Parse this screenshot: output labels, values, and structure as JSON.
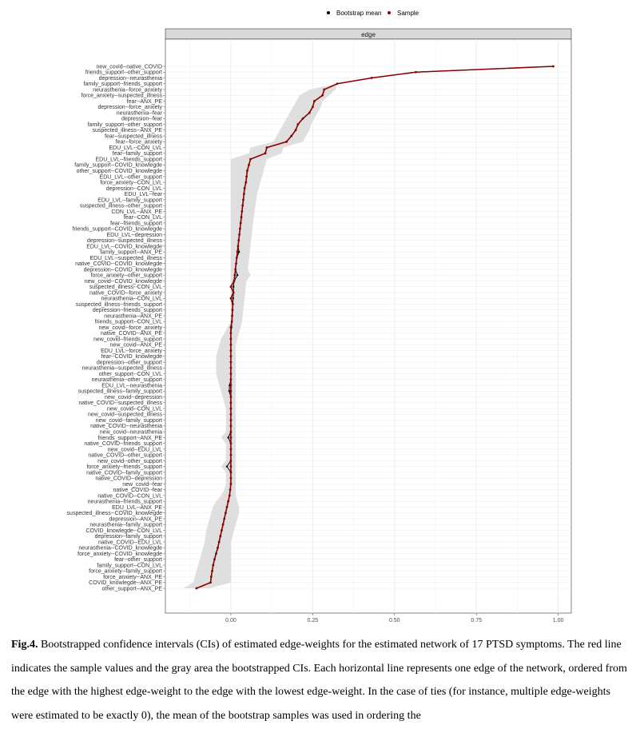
{
  "chart_data": {
    "type": "line",
    "panel_title": "edge",
    "legend": {
      "position": "top",
      "items": [
        {
          "label": "Bootstrap mean",
          "color": "#000000"
        },
        {
          "label": "Sample",
          "color": "#8b0000"
        }
      ]
    },
    "xlim": [
      -0.2,
      1.04
    ],
    "x_ticks": [
      "0.00",
      "0.25",
      "0.50",
      "0.75",
      "1.00"
    ],
    "x_tick_values": [
      0,
      0.25,
      0.5,
      0.75,
      1.0
    ],
    "grid": true,
    "colors": {
      "sample": "#8b0000",
      "mean": "#000000",
      "ci": "#d9d9d9"
    },
    "edges": [
      {
        "label": "new_covid--native_COVID",
        "sample": 0.985,
        "mean": 0.985,
        "lo": 0.985,
        "hi": 0.985
      },
      {
        "label": "friends_support--other_support",
        "sample": 0.565,
        "mean": 0.565,
        "lo": 0.565,
        "hi": 0.565
      },
      {
        "label": "depression--neurasthenia",
        "sample": 0.43,
        "mean": 0.43,
        "lo": 0.43,
        "hi": 0.43
      },
      {
        "label": "family_support--friends_support",
        "sample": 0.325,
        "mean": 0.325,
        "lo": 0.325,
        "hi": 0.325
      },
      {
        "label": "neurasthenia--force_anxiety",
        "sample": 0.285,
        "mean": 0.285,
        "lo": 0.24,
        "hi": 0.32
      },
      {
        "label": "force_anxiety--suspected_illness",
        "sample": 0.28,
        "mean": 0.28,
        "lo": 0.21,
        "hi": 0.3
      },
      {
        "label": "fear--ANX_PE",
        "sample": 0.255,
        "mean": 0.255,
        "lo": 0.2,
        "hi": 0.28
      },
      {
        "label": "depression--force_anxiety",
        "sample": 0.25,
        "mean": 0.25,
        "lo": 0.19,
        "hi": 0.275
      },
      {
        "label": "neurasthenia--fear",
        "sample": 0.24,
        "mean": 0.24,
        "lo": 0.18,
        "hi": 0.265
      },
      {
        "label": "depression--fear",
        "sample": 0.22,
        "mean": 0.22,
        "lo": 0.17,
        "hi": 0.255
      },
      {
        "label": "family_support--other_support",
        "sample": 0.205,
        "mean": 0.205,
        "lo": 0.16,
        "hi": 0.245
      },
      {
        "label": "suspected_illness--ANX_PE",
        "sample": 0.198,
        "mean": 0.198,
        "lo": 0.15,
        "hi": 0.24
      },
      {
        "label": "fear--suspected_illness",
        "sample": 0.185,
        "mean": 0.185,
        "lo": 0.14,
        "hi": 0.23
      },
      {
        "label": "fear--force_anxiety",
        "sample": 0.17,
        "mean": 0.17,
        "lo": 0.13,
        "hi": 0.22
      },
      {
        "label": "EDU_LVL--CON_LVL",
        "sample": 0.11,
        "mean": 0.11,
        "lo": 0.06,
        "hi": 0.16
      },
      {
        "label": "fear--family_support",
        "sample": 0.105,
        "mean": 0.105,
        "lo": 0.055,
        "hi": 0.155
      },
      {
        "label": "EDU_LVL--friends_support",
        "sample": 0.06,
        "mean": 0.06,
        "lo": 0.0,
        "hi": 0.11
      },
      {
        "label": "family_support--COVID_knowlegde",
        "sample": 0.055,
        "mean": 0.055,
        "lo": 0.0,
        "hi": 0.105
      },
      {
        "label": "other_support--COVID_knowlegde",
        "sample": 0.05,
        "mean": 0.05,
        "lo": 0.0,
        "hi": 0.1
      },
      {
        "label": "EDU_LVL--other_support",
        "sample": 0.048,
        "mean": 0.048,
        "lo": 0.0,
        "hi": 0.095
      },
      {
        "label": "force_anxiety--CON_LVL",
        "sample": 0.046,
        "mean": 0.046,
        "lo": 0.0,
        "hi": 0.09
      },
      {
        "label": "depression--CON_LVL",
        "sample": 0.042,
        "mean": 0.042,
        "lo": 0.0,
        "hi": 0.085
      },
      {
        "label": "EDU_LVL--fear",
        "sample": 0.04,
        "mean": 0.04,
        "lo": 0.0,
        "hi": 0.08
      },
      {
        "label": "EDU_LVL--family_support",
        "sample": 0.038,
        "mean": 0.038,
        "lo": 0.0,
        "hi": 0.078
      },
      {
        "label": "suspected_illness--other_support",
        "sample": 0.036,
        "mean": 0.036,
        "lo": 0.0,
        "hi": 0.075
      },
      {
        "label": "CON_LVL--ANX_PE",
        "sample": 0.034,
        "mean": 0.034,
        "lo": 0.0,
        "hi": 0.072
      },
      {
        "label": "fear--CON_LVL",
        "sample": 0.032,
        "mean": 0.032,
        "lo": 0.0,
        "hi": 0.07
      },
      {
        "label": "fear--friends_support",
        "sample": 0.03,
        "mean": 0.03,
        "lo": 0.0,
        "hi": 0.068
      },
      {
        "label": "friends_support--COVID_knowlegde",
        "sample": 0.028,
        "mean": 0.028,
        "lo": 0.0,
        "hi": 0.066
      },
      {
        "label": "EDU_LVL--depression",
        "sample": 0.026,
        "mean": 0.026,
        "lo": 0.0,
        "hi": 0.064
      },
      {
        "label": "depression--suspected_illness",
        "sample": 0.024,
        "mean": 0.024,
        "lo": 0.0,
        "hi": 0.062
      },
      {
        "label": "EDU_LVL--COVID_knowlegde",
        "sample": 0.022,
        "mean": 0.022,
        "lo": 0.0,
        "hi": 0.06
      },
      {
        "label": "family_support--ANX_PE",
        "sample": 0.02,
        "mean": 0.025,
        "lo": 0.0,
        "hi": 0.058
      },
      {
        "label": "EDU_LVL--suspected_illness",
        "sample": 0.018,
        "mean": 0.018,
        "lo": 0.0,
        "hi": 0.056
      },
      {
        "label": "native_COVID--COVID_knowlegde",
        "sample": 0.016,
        "mean": 0.016,
        "lo": 0.0,
        "hi": 0.054
      },
      {
        "label": "depression--COVID_knowlegde",
        "sample": 0.014,
        "mean": 0.014,
        "lo": 0.0,
        "hi": 0.052
      },
      {
        "label": "force_anxiety--other_support",
        "sample": 0.012,
        "mean": 0.02,
        "lo": 0.0,
        "hi": 0.06
      },
      {
        "label": "new_covid--COVID_knowlegde",
        "sample": 0.01,
        "mean": 0.01,
        "lo": 0.0,
        "hi": 0.048
      },
      {
        "label": "suspected_illness--CON_LVL",
        "sample": 0.0,
        "mean": 0.008,
        "lo": 0.0,
        "hi": 0.045
      },
      {
        "label": "native_COVID--force_anxiety",
        "sample": 0.008,
        "mean": 0.008,
        "lo": 0.0,
        "hi": 0.044
      },
      {
        "label": "neurasthenia--CON_LVL",
        "sample": 0.0,
        "mean": 0.007,
        "lo": 0.0,
        "hi": 0.042
      },
      {
        "label": "suspected_illness--friends_support",
        "sample": 0.006,
        "mean": 0.006,
        "lo": 0.0,
        "hi": 0.04
      },
      {
        "label": "depression--friends_support",
        "sample": 0.005,
        "mean": 0.005,
        "lo": 0.0,
        "hi": 0.038
      },
      {
        "label": "neurasthenia--ANX_PE",
        "sample": 0.004,
        "mean": 0.004,
        "lo": 0.0,
        "hi": 0.036
      },
      {
        "label": "friends_support--CON_LVL",
        "sample": 0.003,
        "mean": 0.003,
        "lo": 0.0,
        "hi": 0.034
      },
      {
        "label": "new_covid--force_anxiety",
        "sample": 0.0,
        "mean": 0.002,
        "lo": -0.01,
        "hi": 0.03
      },
      {
        "label": "native_COVID--ANX_PE",
        "sample": 0.0,
        "mean": 0.0,
        "lo": -0.02,
        "hi": 0.025
      },
      {
        "label": "new_covid--friends_support",
        "sample": 0.0,
        "mean": 0.0,
        "lo": -0.03,
        "hi": 0.02
      },
      {
        "label": "new_covid--ANX_PE",
        "sample": 0.0,
        "mean": 0.0,
        "lo": -0.035,
        "hi": 0.015
      },
      {
        "label": "EDU_LVL--force_anxiety",
        "sample": 0.0,
        "mean": 0.0,
        "lo": -0.04,
        "hi": 0.015
      },
      {
        "label": "fear--COVID_knowlegde",
        "sample": 0.0,
        "mean": 0.0,
        "lo": -0.045,
        "hi": 0.015
      },
      {
        "label": "depression--other_support",
        "sample": 0.0,
        "mean": 0.0,
        "lo": -0.045,
        "hi": 0.015
      },
      {
        "label": "neurasthenia--suspected_illness",
        "sample": 0.0,
        "mean": 0.0,
        "lo": -0.045,
        "hi": 0.015
      },
      {
        "label": "other_support--CON_LVL",
        "sample": 0.0,
        "mean": 0.0,
        "lo": -0.045,
        "hi": 0.015
      },
      {
        "label": "neurasthenia--other_support",
        "sample": 0.0,
        "mean": 0.0,
        "lo": -0.04,
        "hi": 0.015
      },
      {
        "label": "EDU_LVL--neurasthenia",
        "sample": 0.0,
        "mean": -0.004,
        "lo": -0.035,
        "hi": 0.015
      },
      {
        "label": "suspected_illness--family_support",
        "sample": 0.0,
        "mean": -0.005,
        "lo": -0.03,
        "hi": 0.015
      },
      {
        "label": "new_covid--depression",
        "sample": 0.0,
        "mean": 0.0,
        "lo": -0.025,
        "hi": 0.015
      },
      {
        "label": "native_COVID--suspected_illness",
        "sample": 0.0,
        "mean": 0.0,
        "lo": -0.02,
        "hi": 0.015
      },
      {
        "label": "new_covid--CON_LVL",
        "sample": 0.0,
        "mean": 0.0,
        "lo": -0.015,
        "hi": 0.015
      },
      {
        "label": "new_covid--suspected_illness",
        "sample": 0.0,
        "mean": 0.0,
        "lo": -0.015,
        "hi": 0.015
      },
      {
        "label": "new_covid--family_support",
        "sample": 0.0,
        "mean": 0.0,
        "lo": -0.015,
        "hi": 0.015
      },
      {
        "label": "native_COVID--neurasthenia",
        "sample": 0.0,
        "mean": 0.0,
        "lo": -0.015,
        "hi": 0.015
      },
      {
        "label": "new_covid--neurasthenia",
        "sample": 0.0,
        "mean": 0.0,
        "lo": -0.015,
        "hi": 0.015
      },
      {
        "label": "friends_support--ANX_PE",
        "sample": 0.0,
        "mean": -0.008,
        "lo": -0.03,
        "hi": 0.015
      },
      {
        "label": "native_COVID--friends_support",
        "sample": 0.0,
        "mean": 0.0,
        "lo": -0.015,
        "hi": 0.015
      },
      {
        "label": "new_covid--EDU_LVL",
        "sample": 0.0,
        "mean": 0.0,
        "lo": -0.015,
        "hi": 0.015
      },
      {
        "label": "native_COVID--other_support",
        "sample": 0.0,
        "mean": 0.0,
        "lo": -0.015,
        "hi": 0.015
      },
      {
        "label": "new_covid--other_support",
        "sample": 0.0,
        "mean": 0.0,
        "lo": -0.015,
        "hi": 0.015
      },
      {
        "label": "force_anxiety--friends_support",
        "sample": 0.0,
        "mean": -0.012,
        "lo": -0.03,
        "hi": 0.015
      },
      {
        "label": "native_COVID--family_support",
        "sample": 0.0,
        "mean": 0.0,
        "lo": -0.015,
        "hi": 0.015
      },
      {
        "label": "native_COVID--depression",
        "sample": 0.0,
        "mean": 0.0,
        "lo": -0.015,
        "hi": 0.015
      },
      {
        "label": "new_covid--fear",
        "sample": 0.0,
        "mean": 0.0,
        "lo": -0.015,
        "hi": 0.015
      },
      {
        "label": "native_COVID--fear",
        "sample": -0.002,
        "mean": -0.002,
        "lo": -0.02,
        "hi": 0.015
      },
      {
        "label": "native_COVID--CON_LVL",
        "sample": -0.004,
        "mean": -0.004,
        "lo": -0.03,
        "hi": 0.015
      },
      {
        "label": "neurasthenia--friends_support",
        "sample": -0.008,
        "mean": -0.008,
        "lo": -0.045,
        "hi": 0.02
      },
      {
        "label": "EDU_LVL--ANX_PE",
        "sample": -0.012,
        "mean": -0.012,
        "lo": -0.055,
        "hi": 0.025
      },
      {
        "label": "suspected_illness--COVID_knowlegde",
        "sample": -0.016,
        "mean": -0.016,
        "lo": -0.06,
        "hi": 0.025
      },
      {
        "label": "depression--ANX_PE",
        "sample": -0.02,
        "mean": -0.02,
        "lo": -0.065,
        "hi": 0.02
      },
      {
        "label": "neurasthenia--family_support",
        "sample": -0.024,
        "mean": -0.024,
        "lo": -0.07,
        "hi": 0.015
      },
      {
        "label": "COVID_knowlegde--CON_LVL",
        "sample": -0.028,
        "mean": -0.028,
        "lo": -0.075,
        "hi": 0.01
      },
      {
        "label": "depression--family_support",
        "sample": -0.032,
        "mean": -0.032,
        "lo": -0.078,
        "hi": 0.005
      },
      {
        "label": "native_COVID--EDU_LVL",
        "sample": -0.036,
        "mean": -0.036,
        "lo": -0.08,
        "hi": 0.0
      },
      {
        "label": "neurasthenia--COVID_knowlegde",
        "sample": -0.04,
        "mean": -0.04,
        "lo": -0.085,
        "hi": 0.0
      },
      {
        "label": "force_anxiety--COVID_knowlegde",
        "sample": -0.045,
        "mean": -0.045,
        "lo": -0.09,
        "hi": 0.0
      },
      {
        "label": "fear--other_support",
        "sample": -0.05,
        "mean": -0.05,
        "lo": -0.095,
        "hi": 0.0
      },
      {
        "label": "family_support--CON_LVL",
        "sample": -0.054,
        "mean": -0.054,
        "lo": -0.1,
        "hi": 0.0
      },
      {
        "label": "force_anxiety--family_support",
        "sample": -0.057,
        "mean": -0.057,
        "lo": -0.105,
        "hi": 0.0
      },
      {
        "label": "force_anxiety--ANX_PE",
        "sample": -0.06,
        "mean": -0.06,
        "lo": -0.11,
        "hi": 0.0
      },
      {
        "label": "COVID_knowlegde--ANX_PE",
        "sample": -0.062,
        "mean": -0.062,
        "lo": -0.115,
        "hi": 0.0
      },
      {
        "label": "other_support--ANX_PE",
        "sample": -0.105,
        "mean": -0.105,
        "lo": -0.145,
        "hi": -0.065
      }
    ]
  },
  "caption": {
    "fig_label": "Fig.4.",
    "text": " Bootstrapped confidence intervals (CIs) of estimated edge-weights for the estimated network of 17 PTSD symptoms. The red line indicates the sample values and the gray area the bootstrapped CIs. Each horizontal line represents one edge of the network, ordered from the edge with the highest edge-weight to the edge with the lowest edge-weight. In the case of ties (for instance, multiple edge-weights were estimated to be exactly 0), the mean of the bootstrap samples was used in ordering the"
  }
}
